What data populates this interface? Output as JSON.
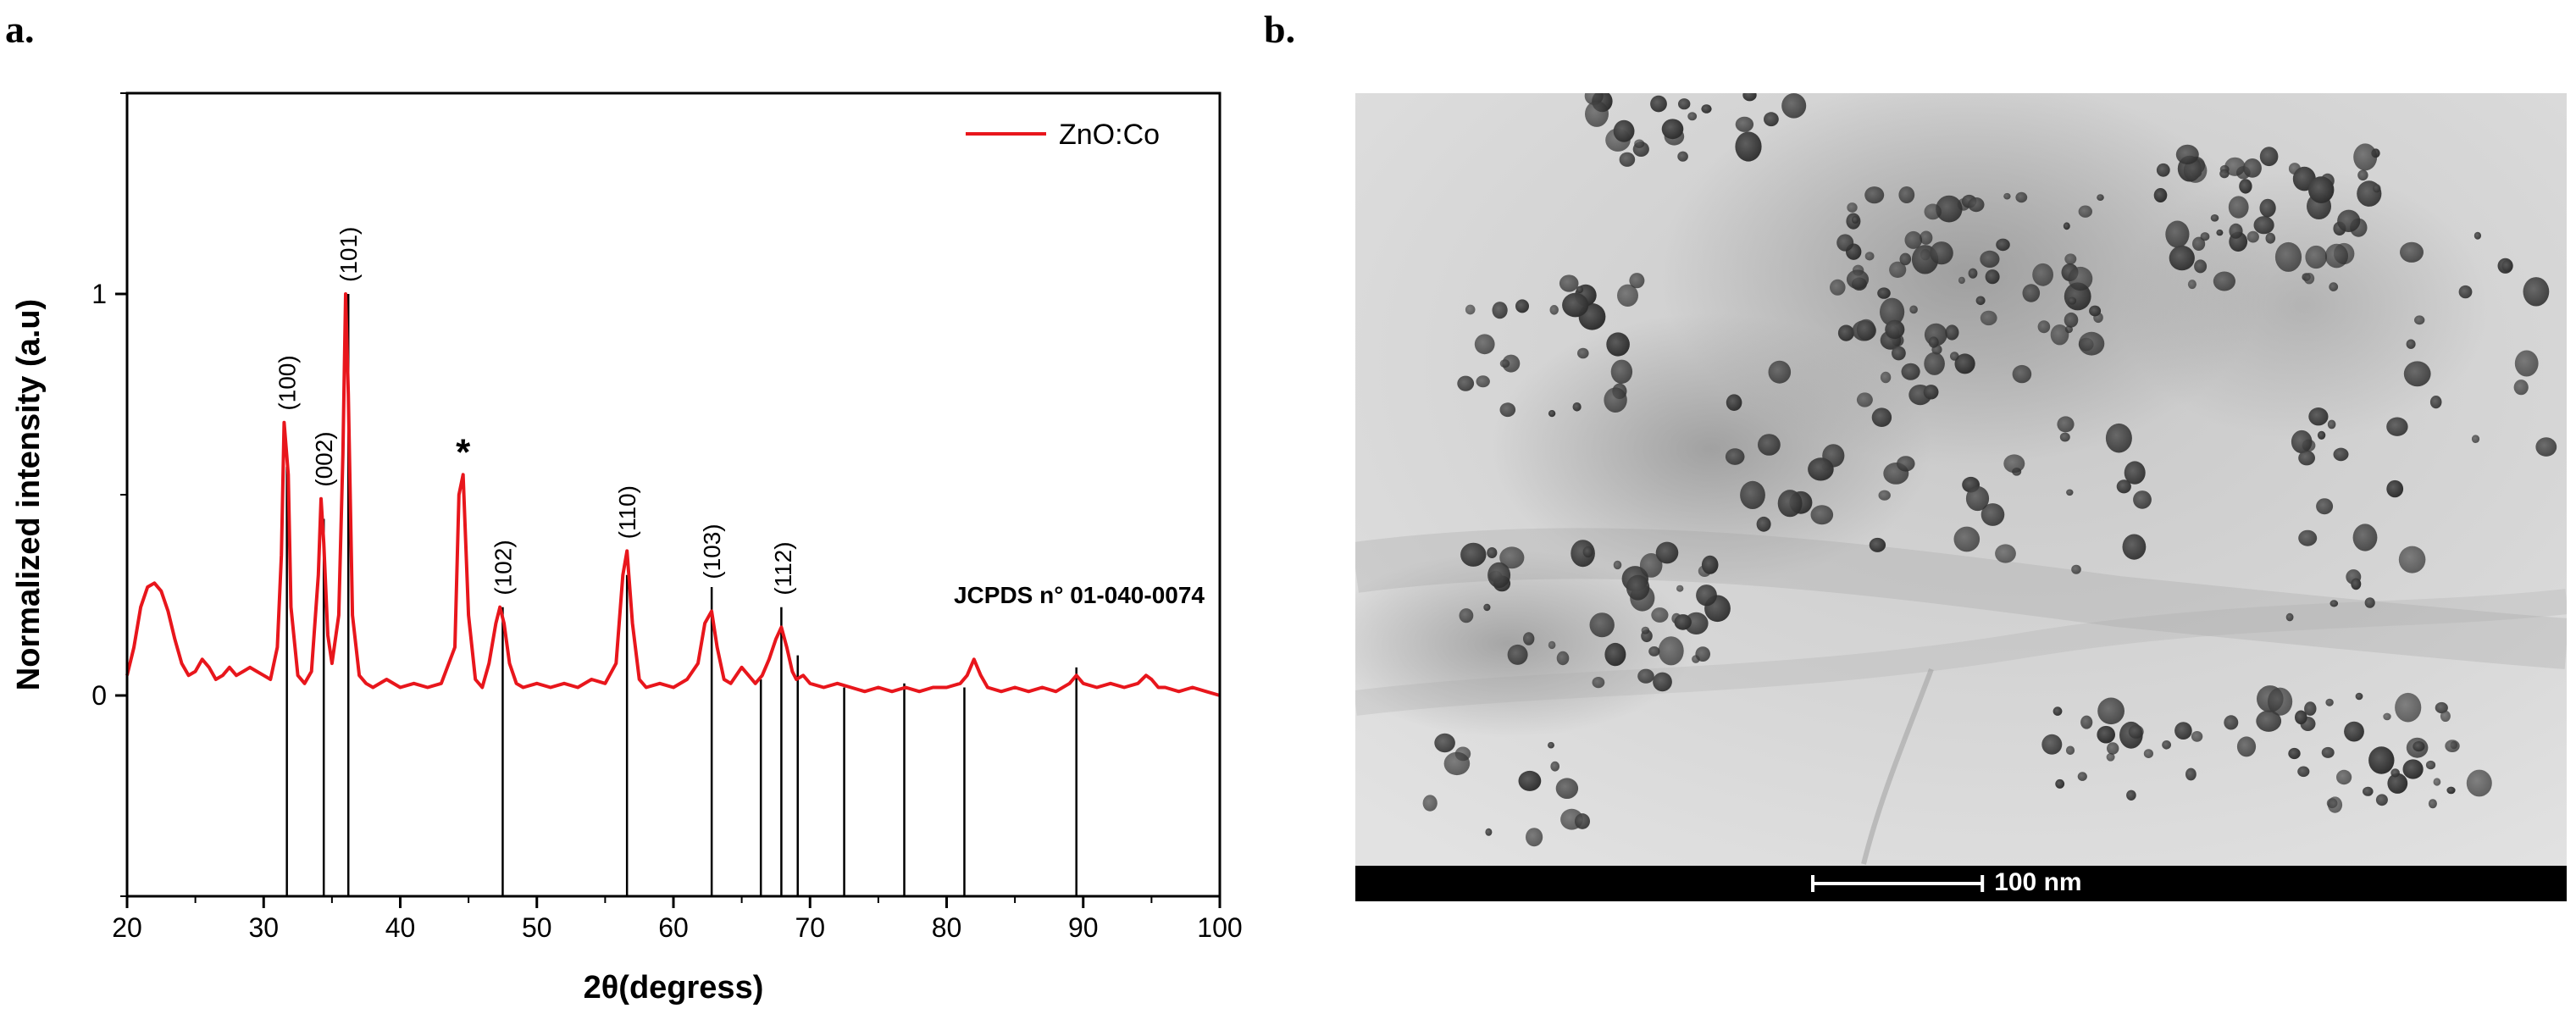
{
  "panels": {
    "a_label": "a.",
    "b_label": "b."
  },
  "chart_data": {
    "type": "line",
    "title": "",
    "xlabel": "2θ(degress)",
    "ylabel": "Normalized intensity (a.u)",
    "xlim": [
      20,
      100
    ],
    "ylim": [
      -0.5,
      1.5
    ],
    "xticks": [
      20,
      30,
      40,
      50,
      60,
      70,
      80,
      90,
      100
    ],
    "yticks": [
      0,
      1
    ],
    "legend": {
      "placement": "top-right",
      "entries": [
        "ZnO:Co"
      ]
    },
    "series": [
      {
        "name": "ZnO:Co",
        "color": "#e8161c",
        "x": [
          20.0,
          20.5,
          21.0,
          21.5,
          22.0,
          22.5,
          23.0,
          23.5,
          24.0,
          24.5,
          25.0,
          25.5,
          26.0,
          26.5,
          27.0,
          27.5,
          28.0,
          28.5,
          29.0,
          29.5,
          30.0,
          30.5,
          31.0,
          31.3,
          31.5,
          31.8,
          32.0,
          32.5,
          33.0,
          33.5,
          34.0,
          34.2,
          34.4,
          34.7,
          35.0,
          35.5,
          35.8,
          36.0,
          36.2,
          36.5,
          37.0,
          37.5,
          38.0,
          39.0,
          40.0,
          41.0,
          42.0,
          43.0,
          44.0,
          44.3,
          44.6,
          45.0,
          45.5,
          46.0,
          46.5,
          47.0,
          47.3,
          47.6,
          48.0,
          48.5,
          49.0,
          50.0,
          51.0,
          52.0,
          53.0,
          54.0,
          55.0,
          55.8,
          56.3,
          56.6,
          57.0,
          57.5,
          58.0,
          59.0,
          60.0,
          61.0,
          61.8,
          62.3,
          62.8,
          63.2,
          63.7,
          64.2,
          65.0,
          65.5,
          66.0,
          66.5,
          67.0,
          67.5,
          67.9,
          68.3,
          68.7,
          69.0,
          69.5,
          70.0,
          71.0,
          72.0,
          73.0,
          74.0,
          75.0,
          76.0,
          77.0,
          78.0,
          79.0,
          80.0,
          81.0,
          81.5,
          82.0,
          82.5,
          83.0,
          84.0,
          85.0,
          86.0,
          87.0,
          88.0,
          89.0,
          89.5,
          90.0,
          91.0,
          92.0,
          93.0,
          94.0,
          94.6,
          95.0,
          95.5,
          96.0,
          97.0,
          98.0,
          99.0,
          100.0
        ],
        "y": [
          0.05,
          0.12,
          0.22,
          0.27,
          0.28,
          0.26,
          0.21,
          0.14,
          0.08,
          0.05,
          0.06,
          0.09,
          0.07,
          0.04,
          0.05,
          0.07,
          0.05,
          0.06,
          0.07,
          0.06,
          0.05,
          0.04,
          0.12,
          0.35,
          0.68,
          0.55,
          0.22,
          0.05,
          0.03,
          0.06,
          0.3,
          0.49,
          0.38,
          0.15,
          0.08,
          0.2,
          0.6,
          1.0,
          0.75,
          0.2,
          0.05,
          0.03,
          0.02,
          0.04,
          0.02,
          0.03,
          0.02,
          0.03,
          0.12,
          0.5,
          0.55,
          0.2,
          0.04,
          0.02,
          0.08,
          0.18,
          0.22,
          0.18,
          0.08,
          0.03,
          0.02,
          0.03,
          0.02,
          0.03,
          0.02,
          0.04,
          0.03,
          0.08,
          0.3,
          0.36,
          0.18,
          0.04,
          0.02,
          0.03,
          0.02,
          0.04,
          0.08,
          0.18,
          0.21,
          0.12,
          0.04,
          0.03,
          0.07,
          0.05,
          0.03,
          0.05,
          0.09,
          0.14,
          0.17,
          0.12,
          0.06,
          0.04,
          0.05,
          0.03,
          0.02,
          0.03,
          0.02,
          0.01,
          0.02,
          0.01,
          0.02,
          0.01,
          0.02,
          0.02,
          0.03,
          0.05,
          0.09,
          0.05,
          0.02,
          0.01,
          0.02,
          0.01,
          0.02,
          0.01,
          0.03,
          0.05,
          0.03,
          0.02,
          0.03,
          0.02,
          0.03,
          0.05,
          0.04,
          0.02,
          0.02,
          0.01,
          0.02,
          0.01,
          0.0
        ]
      }
    ],
    "peak_labels": [
      {
        "text": "(100)",
        "x": 31.7,
        "y": 0.68
      },
      {
        "text": "(002)",
        "x": 34.4,
        "y": 0.49
      },
      {
        "text": "(101)",
        "x": 36.2,
        "y": 1.0
      },
      {
        "text": "*",
        "x": 44.6,
        "y": 0.55
      },
      {
        "text": "(102)",
        "x": 47.5,
        "y": 0.22
      },
      {
        "text": "(110)",
        "x": 56.6,
        "y": 0.36
      },
      {
        "text": "(103)",
        "x": 62.8,
        "y": 0.26
      },
      {
        "text": "(112)",
        "x": 68.0,
        "y": 0.22
      }
    ],
    "reference": {
      "label": "JCPDS n° 01-040-0074",
      "lines": [
        {
          "x": 31.7,
          "top": 0.57
        },
        {
          "x": 34.4,
          "top": 0.44
        },
        {
          "x": 36.2,
          "top": 1.0
        },
        {
          "x": 47.5,
          "top": 0.22
        },
        {
          "x": 56.6,
          "top": 0.3
        },
        {
          "x": 62.8,
          "top": 0.27
        },
        {
          "x": 66.4,
          "top": 0.04
        },
        {
          "x": 67.9,
          "top": 0.22
        },
        {
          "x": 69.1,
          "top": 0.1
        },
        {
          "x": 72.5,
          "top": 0.02
        },
        {
          "x": 76.9,
          "top": 0.03
        },
        {
          "x": 81.3,
          "top": 0.02
        },
        {
          "x": 89.5,
          "top": 0.07
        }
      ]
    }
  },
  "tem": {
    "scale_bar_label": "100 nm",
    "scale_bar_fraction": 0.14
  }
}
